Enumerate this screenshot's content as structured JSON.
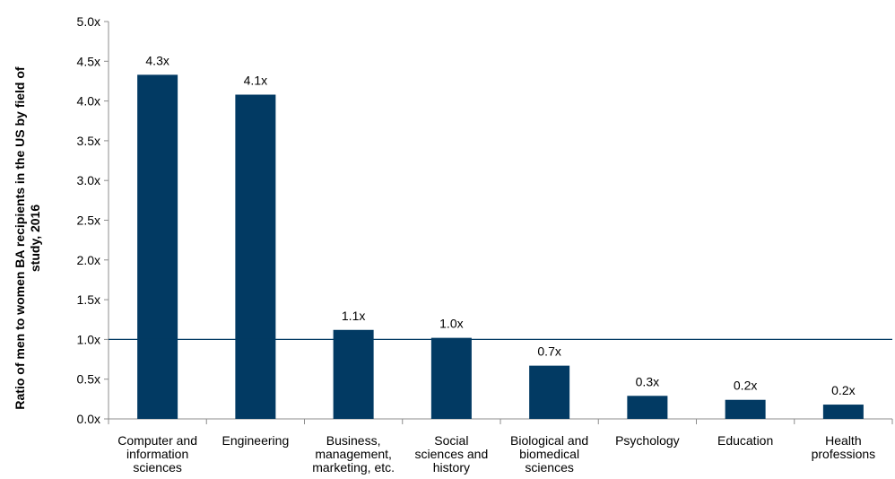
{
  "chart_data": {
    "type": "bar",
    "y_label": "Ratio of men to women BA recipients in the US by field of\nstudy, 2016",
    "categories": [
      "Computer and\ninformation\nsciences",
      "Engineering",
      "Business,\nmanagement,\nmarketing, etc.",
      "Social\nsciences and\nhistory",
      "Biological and\nbiomedical\nsciences",
      "Psychology",
      "Education",
      "Health\nprofessions"
    ],
    "values": [
      4.33,
      4.08,
      1.12,
      1.02,
      0.67,
      0.29,
      0.24,
      0.18
    ],
    "value_labels": [
      "4.3x",
      "4.1x",
      "1.1x",
      "1.0x",
      "0.7x",
      "0.3x",
      "0.2x",
      "0.2x"
    ],
    "color": "#023a63",
    "ylim": [
      0,
      5
    ],
    "yticks": [
      {
        "value": 0,
        "label": "0.0x"
      },
      {
        "value": 0.5,
        "label": "0.5x"
      },
      {
        "value": 1,
        "label": "1.0x"
      },
      {
        "value": 1.5,
        "label": "1.5x"
      },
      {
        "value": 2,
        "label": "2.0x"
      },
      {
        "value": 2.5,
        "label": "2.5x"
      },
      {
        "value": 3,
        "label": "3.0x"
      },
      {
        "value": 3.5,
        "label": "3.5x"
      },
      {
        "value": 4,
        "label": "4.0x"
      },
      {
        "value": 4.5,
        "label": "4.5x"
      },
      {
        "value": 5,
        "label": "5.0x"
      }
    ],
    "reference_line": 1,
    "grid": false
  }
}
